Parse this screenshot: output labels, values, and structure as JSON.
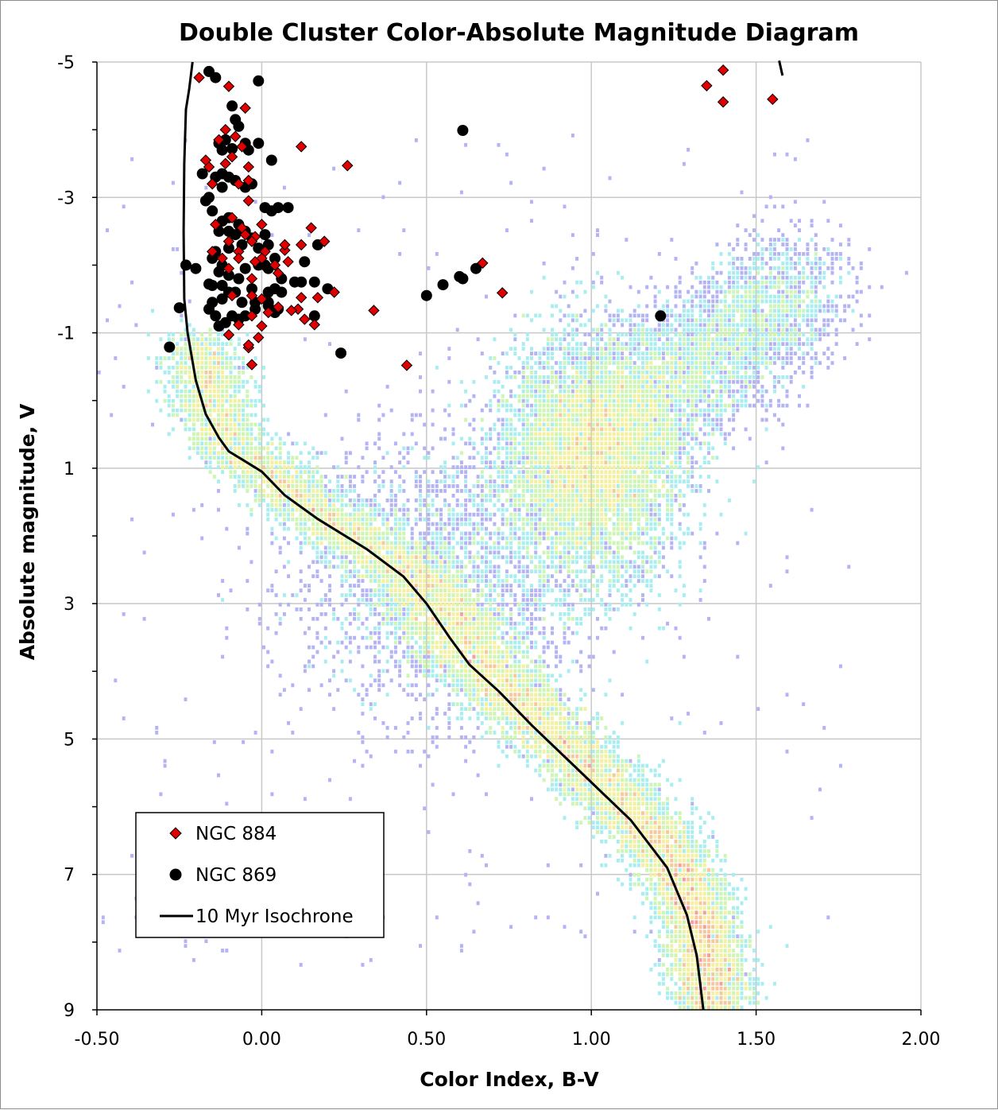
{
  "chart_data": {
    "type": "scatter",
    "title": "Double Cluster Color-Absolute Magnitude Diagram",
    "xlabel": "Color Index, B-V",
    "ylabel": "Absolute magnitude, V",
    "xlim": [
      -0.5,
      2.0
    ],
    "ylim": [
      -5,
      9
    ],
    "y_inverted": true,
    "x_ticks": [
      "-0.50",
      "0.00",
      "0.50",
      "1.00",
      "1.50",
      "2.00"
    ],
    "y_ticks": [
      "-5",
      "-3",
      "-1",
      "1",
      "3",
      "5",
      "7",
      "9"
    ],
    "grid": true,
    "legend_position": "bottom-left",
    "colors": {
      "ngc884": "#e00000",
      "ngc869": "#000000",
      "isochrone": "#000000",
      "grid": "#c8c8c8",
      "density": [
        "#b4b4f5",
        "#a8eef0",
        "#cdf5b4",
        "#f5f0a0",
        "#f5c8a0",
        "#f5a0a0"
      ]
    },
    "series": [
      {
        "name": "NGC 884",
        "marker": "diamond",
        "points": [
          [
            -0.19,
            -4.77
          ],
          [
            -0.1,
            -4.64
          ],
          [
            -0.05,
            -4.32
          ],
          [
            -0.11,
            -4.0
          ],
          [
            -0.08,
            -3.9
          ],
          [
            -0.06,
            -3.75
          ],
          [
            -0.11,
            -3.5
          ],
          [
            -0.09,
            -3.6
          ],
          [
            0.12,
            -3.75
          ],
          [
            0.26,
            -3.47
          ],
          [
            -0.16,
            -3.45
          ],
          [
            -0.04,
            -3.45
          ],
          [
            -0.15,
            -3.2
          ],
          [
            -0.07,
            -3.2
          ],
          [
            -0.04,
            -3.25
          ],
          [
            -0.04,
            -2.95
          ],
          [
            -0.14,
            -2.6
          ],
          [
            -0.09,
            -2.7
          ],
          [
            -0.06,
            -2.55
          ],
          [
            -0.02,
            -2.42
          ],
          [
            0.0,
            -2.6
          ],
          [
            0.07,
            -2.22
          ],
          [
            -0.05,
            -2.45
          ],
          [
            -0.1,
            -2.35
          ],
          [
            -0.15,
            -2.2
          ],
          [
            -0.07,
            -2.2
          ],
          [
            0.01,
            -2.2
          ],
          [
            0.07,
            -2.3
          ],
          [
            0.12,
            -2.3
          ],
          [
            0.15,
            -2.55
          ],
          [
            0.19,
            -2.35
          ],
          [
            0.08,
            -2.05
          ],
          [
            0.05,
            -1.88
          ],
          [
            0.0,
            -2.1
          ],
          [
            -0.02,
            -2.05
          ],
          [
            -0.1,
            -1.95
          ],
          [
            -0.03,
            -1.8
          ],
          [
            -0.09,
            -1.55
          ],
          [
            0.0,
            -1.5
          ],
          [
            -0.03,
            -1.55
          ],
          [
            0.05,
            -1.38
          ],
          [
            0.11,
            -1.35
          ],
          [
            0.12,
            -1.52
          ],
          [
            0.17,
            -1.52
          ],
          [
            0.22,
            -1.6
          ],
          [
            0.13,
            -1.2
          ],
          [
            0.16,
            -1.12
          ],
          [
            0.09,
            -1.33
          ],
          [
            0.02,
            -1.3
          ],
          [
            0.0,
            -1.1
          ],
          [
            -0.03,
            -1.25
          ],
          [
            -0.07,
            -1.12
          ],
          [
            -0.1,
            -0.97
          ],
          [
            -0.01,
            -0.93
          ],
          [
            -0.04,
            -0.78
          ],
          [
            -0.04,
            -0.82
          ],
          [
            -0.03,
            -0.53
          ],
          [
            0.34,
            -1.33
          ],
          [
            0.44,
            -0.52
          ],
          [
            0.67,
            -2.03
          ],
          [
            0.73,
            -1.59
          ],
          [
            1.35,
            -4.65
          ],
          [
            1.4,
            -4.88
          ],
          [
            1.4,
            -4.41
          ],
          [
            1.55,
            -4.45
          ],
          [
            -0.07,
            -2.1
          ],
          [
            -0.12,
            -2.1
          ],
          [
            0.04,
            -2.0
          ],
          [
            -0.03,
            -2.35
          ],
          [
            -0.13,
            -3.85
          ],
          [
            -0.17,
            -3.55
          ]
        ]
      },
      {
        "name": "NGC 869",
        "marker": "circle",
        "points": [
          [
            -0.16,
            -4.86
          ],
          [
            -0.14,
            -4.77
          ],
          [
            -0.01,
            -4.72
          ],
          [
            -0.09,
            -4.35
          ],
          [
            -0.08,
            -4.15
          ],
          [
            -0.07,
            -4.05
          ],
          [
            -0.13,
            -3.8
          ],
          [
            -0.11,
            -3.85
          ],
          [
            -0.12,
            -3.7
          ],
          [
            -0.09,
            -3.72
          ],
          [
            -0.05,
            -3.8
          ],
          [
            -0.01,
            -3.8
          ],
          [
            -0.04,
            -3.7
          ],
          [
            -0.18,
            -3.35
          ],
          [
            -0.14,
            -3.3
          ],
          [
            -0.12,
            -3.35
          ],
          [
            -0.08,
            -3.25
          ],
          [
            -0.1,
            -3.3
          ],
          [
            -0.05,
            -3.15
          ],
          [
            -0.03,
            -3.2
          ],
          [
            -0.12,
            -3.15
          ],
          [
            0.03,
            -3.55
          ],
          [
            0.61,
            -3.99
          ],
          [
            -0.17,
            -2.95
          ],
          [
            -0.16,
            -3.0
          ],
          [
            -0.15,
            -2.8
          ],
          [
            -0.12,
            -2.65
          ],
          [
            -0.1,
            -2.7
          ],
          [
            -0.13,
            -2.5
          ],
          [
            -0.1,
            -2.5
          ],
          [
            -0.08,
            -2.45
          ],
          [
            -0.05,
            -2.5
          ],
          [
            0.01,
            -2.85
          ],
          [
            0.03,
            -2.8
          ],
          [
            0.05,
            -2.85
          ],
          [
            0.08,
            -2.85
          ],
          [
            -0.06,
            -2.3
          ],
          [
            -0.03,
            -2.4
          ],
          [
            -0.01,
            -2.25
          ],
          [
            0.02,
            -2.3
          ],
          [
            -0.14,
            -2.2
          ],
          [
            -0.15,
            -2.1
          ],
          [
            -0.12,
            -2.0
          ],
          [
            -0.13,
            -1.9
          ],
          [
            -0.1,
            -1.85
          ],
          [
            -0.07,
            -1.8
          ],
          [
            -0.05,
            -1.95
          ],
          [
            -0.01,
            -2.0
          ],
          [
            0.02,
            -1.95
          ],
          [
            0.04,
            -2.1
          ],
          [
            0.06,
            -1.8
          ],
          [
            0.1,
            -1.75
          ],
          [
            0.12,
            -1.75
          ],
          [
            0.16,
            -1.75
          ],
          [
            0.13,
            -2.05
          ],
          [
            0.17,
            -2.3
          ],
          [
            -0.16,
            -1.72
          ],
          [
            -0.15,
            -1.7
          ],
          [
            -0.2,
            -1.95
          ],
          [
            -0.23,
            -2.0
          ],
          [
            -0.12,
            -1.7
          ],
          [
            -0.1,
            -1.6
          ],
          [
            -0.08,
            -1.6
          ],
          [
            -0.03,
            -1.65
          ],
          [
            0.02,
            -1.6
          ],
          [
            0.04,
            -1.65
          ],
          [
            0.06,
            -1.6
          ],
          [
            -0.12,
            -1.5
          ],
          [
            -0.06,
            -1.45
          ],
          [
            -0.02,
            -1.45
          ],
          [
            0.02,
            -1.45
          ],
          [
            0.05,
            -1.35
          ],
          [
            -0.15,
            -1.45
          ],
          [
            -0.16,
            -1.35
          ],
          [
            -0.13,
            -1.1
          ],
          [
            -0.11,
            -1.15
          ],
          [
            -0.07,
            -1.2
          ],
          [
            -0.02,
            -1.35
          ],
          [
            0.02,
            -1.4
          ],
          [
            0.04,
            -1.3
          ],
          [
            -0.25,
            -1.37
          ],
          [
            -0.28,
            -0.79
          ],
          [
            0.24,
            -0.7
          ],
          [
            0.5,
            -1.55
          ],
          [
            0.55,
            -1.71
          ],
          [
            0.6,
            -1.83
          ],
          [
            0.61,
            -1.8
          ],
          [
            0.65,
            -1.95
          ],
          [
            1.21,
            -1.25
          ],
          [
            0.2,
            -1.65
          ],
          [
            -0.09,
            -1.25
          ],
          [
            -0.05,
            -1.25
          ],
          [
            0.16,
            -1.25
          ],
          [
            -0.14,
            -1.25
          ],
          [
            -0.1,
            -2.25
          ],
          [
            0.01,
            -2.45
          ],
          [
            -0.07,
            -2.6
          ],
          [
            0.01,
            -2.0
          ]
        ]
      },
      {
        "name": "10 Myr Isochrone",
        "type": "line",
        "points": [
          [
            -0.21,
            -5.0
          ],
          [
            -0.22,
            -4.6
          ],
          [
            -0.23,
            -4.3
          ],
          [
            -0.235,
            -3.5
          ],
          [
            -0.237,
            -2.5
          ],
          [
            -0.235,
            -1.5
          ],
          [
            -0.225,
            -1.0
          ],
          [
            -0.2,
            -0.3
          ],
          [
            -0.17,
            0.2
          ],
          [
            -0.13,
            0.55
          ],
          [
            -0.1,
            0.75
          ],
          [
            -0.05,
            0.9
          ],
          [
            0.0,
            1.05
          ],
          [
            0.07,
            1.4
          ],
          [
            0.17,
            1.75
          ],
          [
            0.32,
            2.2
          ],
          [
            0.43,
            2.6
          ],
          [
            0.5,
            3.0
          ],
          [
            0.57,
            3.5
          ],
          [
            0.63,
            3.9
          ],
          [
            0.72,
            4.3
          ],
          [
            0.82,
            4.8
          ],
          [
            0.97,
            5.5
          ],
          [
            1.12,
            6.2
          ],
          [
            1.23,
            6.9
          ],
          [
            1.29,
            7.6
          ],
          [
            1.32,
            8.2
          ],
          [
            1.34,
            9.0
          ]
        ]
      },
      {
        "name": "",
        "type": "isochrone-fragment",
        "points": [
          [
            1.57,
            -5.02
          ],
          [
            1.58,
            -4.8
          ]
        ]
      }
    ],
    "legend": [
      {
        "label": "NGC 884",
        "marker": "diamond"
      },
      {
        "label": "NGC 869",
        "marker": "circle"
      },
      {
        "label": "10 Myr Isochrone",
        "marker": "line"
      }
    ]
  }
}
